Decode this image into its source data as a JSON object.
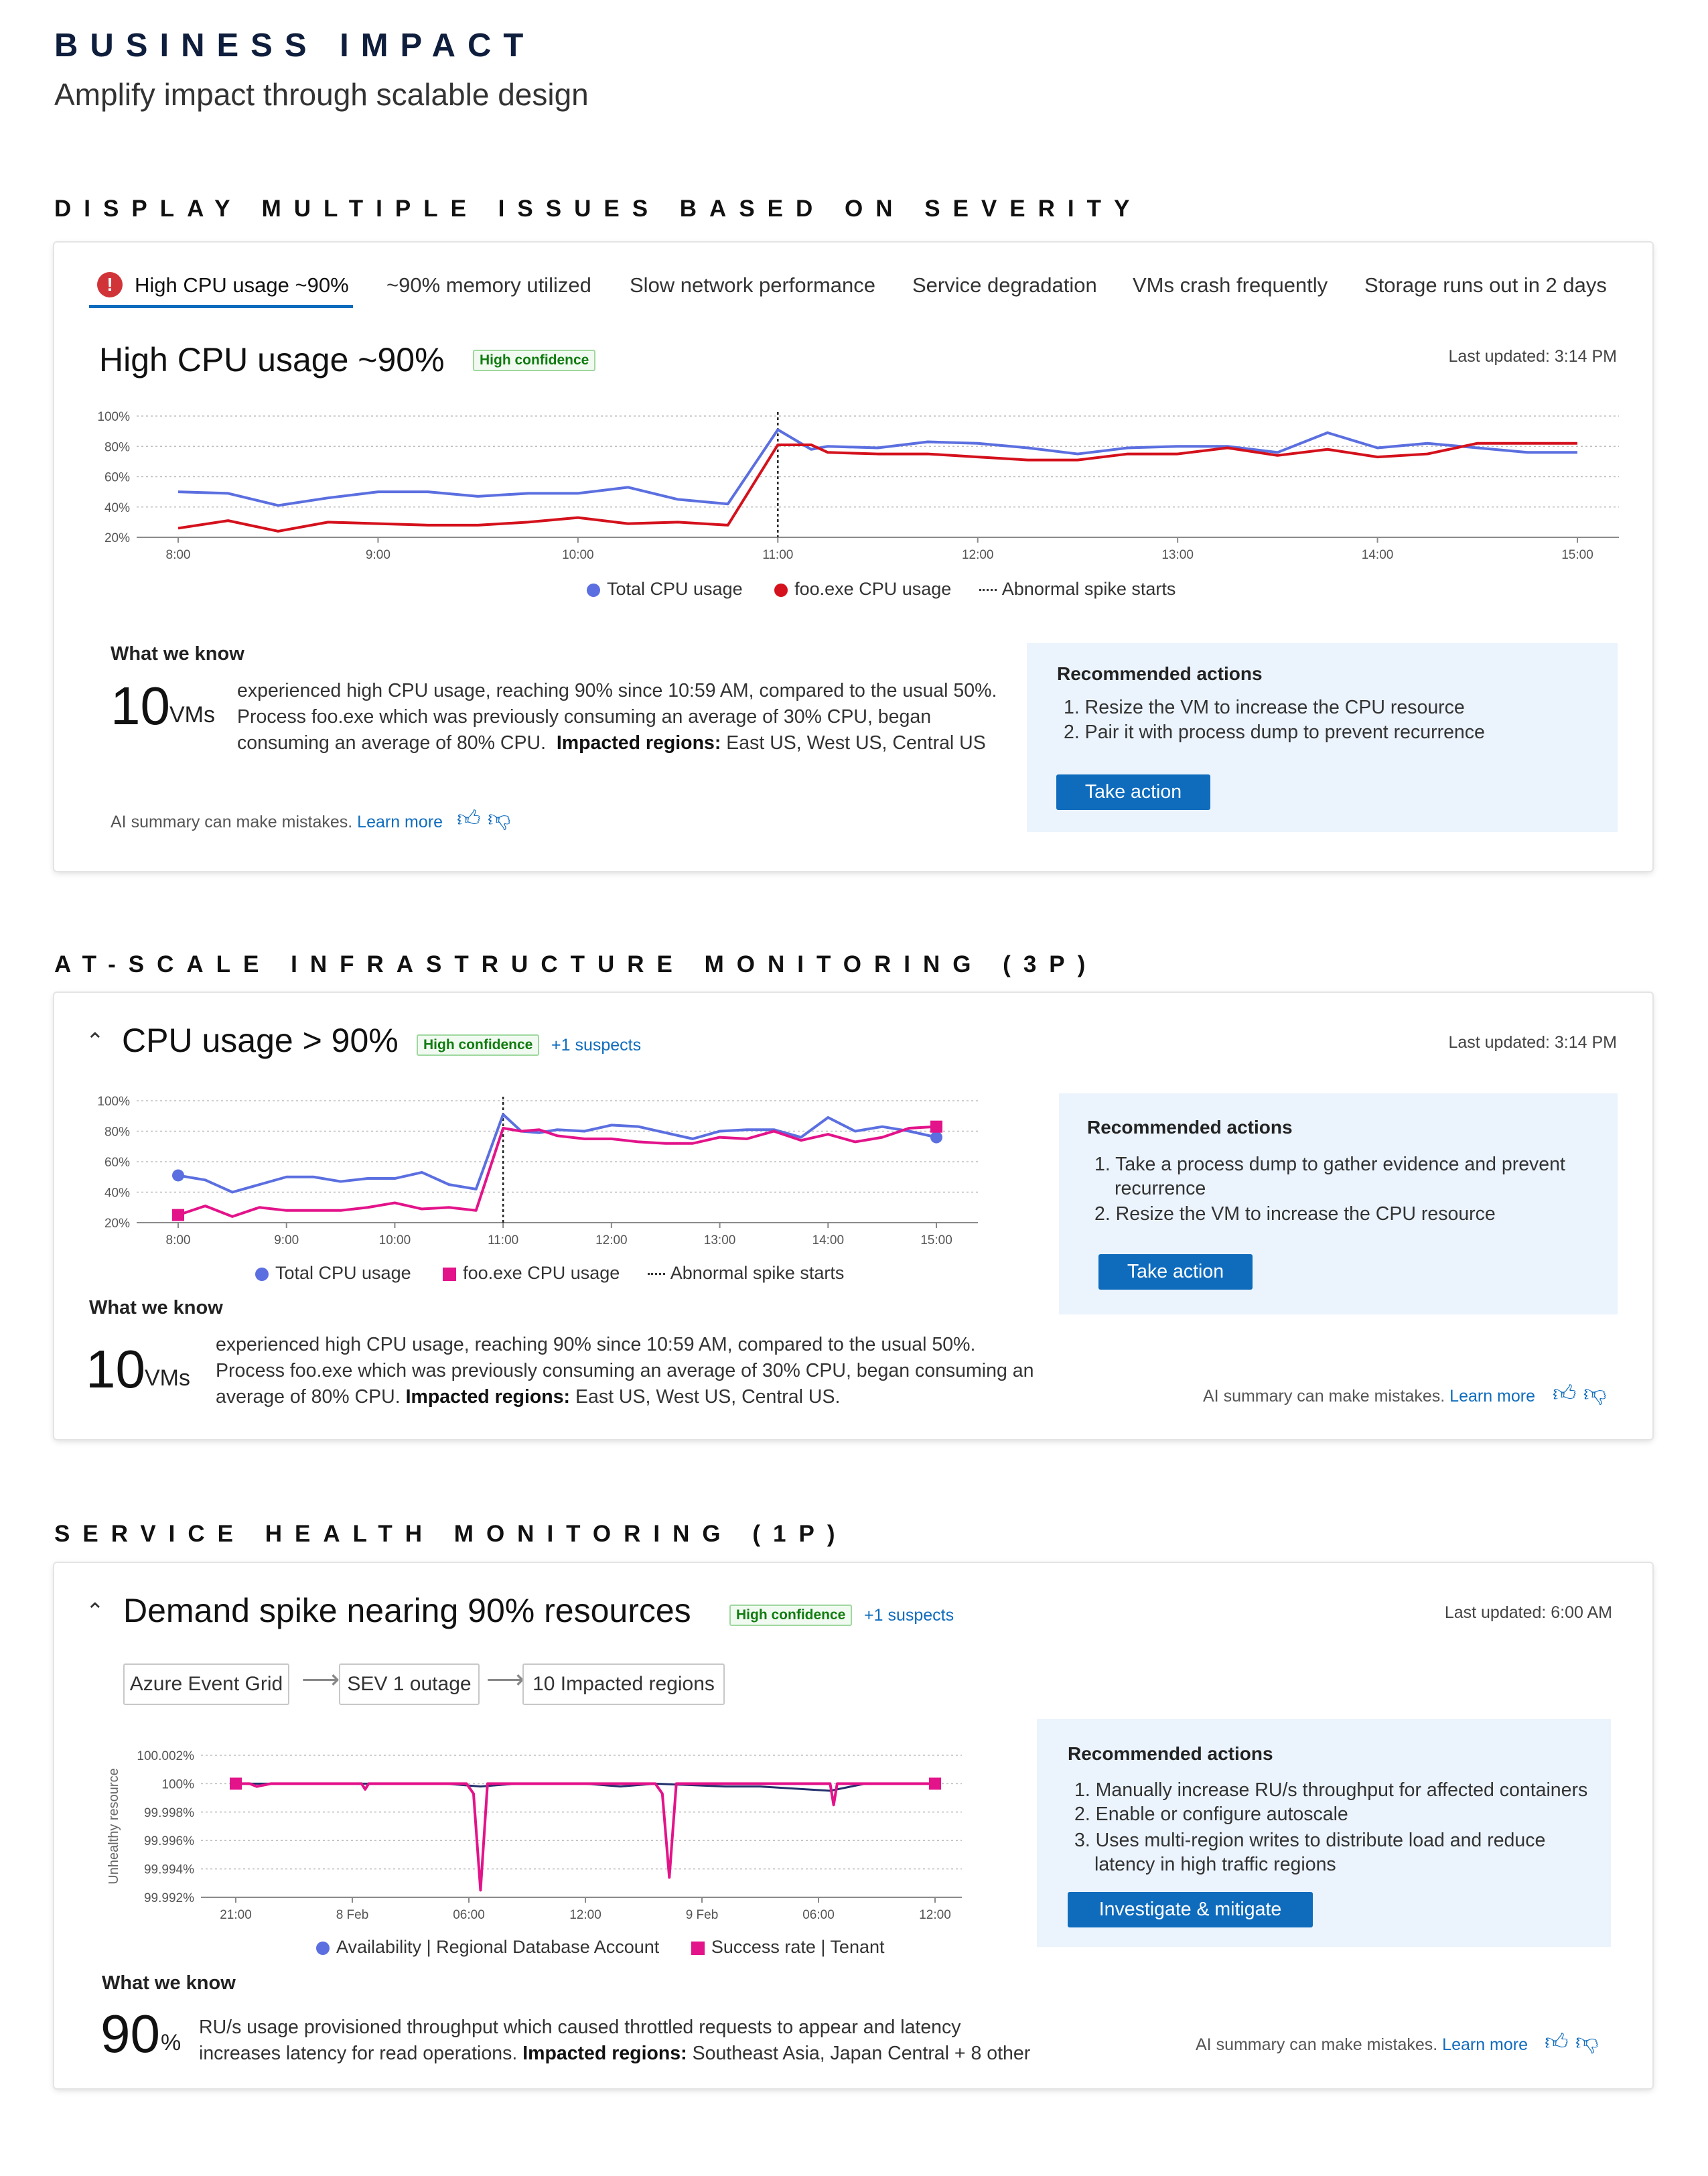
{
  "header": {
    "title": "BUSINESS IMPACT",
    "subtitle": "Amplify impact through scalable design"
  },
  "section1": {
    "heading": "DISPLAY MULTIPLE ISSUES BASED ON SEVERITY",
    "tabs": [
      "High CPU usage ~90%",
      "~90% memory utilized",
      "Slow network performance",
      "Service degradation",
      "VMs crash frequently",
      "Storage runs out in 2 days"
    ],
    "card_title": "High CPU usage ~90%",
    "badge": "High confidence",
    "last_updated": "Last updated: 3:14 PM",
    "legend": {
      "total": "Total CPU usage",
      "foo": "foo.exe CPU usage",
      "spike": "Abnormal spike starts"
    },
    "what_we_know": "What we know",
    "big_number": "10",
    "big_unit": "VMs",
    "text1": "experienced high CPU usage, reaching 90% since 10:59 AM, compared to the usual 50%.",
    "text2": "Process foo.exe which was previously consuming an average of 30% CPU, began",
    "text3a": "consuming an average of 80% CPU.",
    "text3b": "Impacted regions:",
    "text3c": "East US, West US, Central US",
    "ai_note": "AI summary can make mistakes.",
    "learn_more": "Learn more",
    "reco_title": "Recommended actions",
    "reco_items": [
      "1. Resize the VM to increase the CPU resource",
      "2. Pair it with process dump to prevent recurrence"
    ],
    "action_button": "Take action"
  },
  "section2": {
    "heading": "AT-SCALE INFRASTRUCTURE MONITORING (3P)",
    "card_title": "CPU usage > 90%",
    "badge": "High confidence",
    "suspects": "+1 suspects",
    "last_updated": "Last updated: 3:14 PM",
    "legend": {
      "total": "Total CPU usage",
      "foo": "foo.exe CPU usage",
      "spike": "Abnormal spike starts"
    },
    "what_we_know": "What we know",
    "big_number": "10",
    "big_unit": "VMs",
    "text1": "experienced high CPU usage, reaching 90% since 10:59 AM, compared to the usual 50%.",
    "text2": "Process foo.exe which was previously consuming an average of 30% CPU, began consuming an",
    "text3a": "average of 80% CPU.",
    "text3b": "Impacted regions:",
    "text3c": "East US, West US, Central US.",
    "ai_note": "AI summary can make mistakes.",
    "learn_more": "Learn more",
    "reco_title": "Recommended actions",
    "reco_items": [
      "1. Take a process dump to gather evidence and prevent",
      "recurrence",
      "2. Resize the VM to increase the CPU resource"
    ],
    "action_button": "Take action"
  },
  "section3": {
    "heading": "SERVICE HEALTH MONITORING (1P)",
    "card_title": "Demand spike nearing 90% resources",
    "badge": "High confidence",
    "suspects": "+1 suspects",
    "last_updated": "Last updated: 6:00 AM",
    "flow": [
      "Azure Event Grid",
      "SEV 1 outage",
      "10 Impacted regions"
    ],
    "y_axis_label": "Unhealthy resource",
    "legend": {
      "availability": "Availability | Regional Database Account",
      "success": "Success rate | Tenant"
    },
    "what_we_know": "What we know",
    "big_number": "90",
    "big_unit": "%",
    "text1": "RU/s usage  provisioned throughput which caused throttled requests to appear and latency",
    "text2a": "increases latency for read operations.",
    "text2b": "Impacted regions:",
    "text2c": "Southeast Asia, Japan Central + 8 other",
    "ai_note": "AI summary can make mistakes.",
    "learn_more": "Learn more",
    "reco_title": "Recommended actions",
    "reco_items": [
      "1. Manually increase RU/s throughput for affected containers",
      "2. Enable or configure autoscale",
      "3. Uses multi-region writes to distribute load and reduce",
      "latency in high traffic regions"
    ],
    "action_button": "Investigate & mitigate"
  },
  "colors": {
    "total_cpu": "#5b6fe0",
    "foo_cpu_red": "#d4111c",
    "foo_cpu_magenta": "#e3138a",
    "accent": "#0f6cbd",
    "success_green": "#107c10"
  },
  "chart_data": [
    {
      "type": "line",
      "x": [
        "8:00",
        "8:15",
        "8:30",
        "8:45",
        "9:00",
        "9:15",
        "9:30",
        "9:45",
        "10:00",
        "10:15",
        "10:30",
        "10:45",
        "11:00",
        "11:10",
        "11:15",
        "11:30",
        "11:45",
        "12:00",
        "12:15",
        "12:30",
        "12:45",
        "13:00",
        "13:15",
        "13:30",
        "13:45",
        "14:00",
        "14:15",
        "14:30",
        "14:45",
        "15:00"
      ],
      "x_ticks": [
        "8:00",
        "9:00",
        "10:00",
        "11:00",
        "12:00",
        "13:00",
        "14:00",
        "15:00"
      ],
      "y_ticks": [
        "20%",
        "40%",
        "60%",
        "80%",
        "100%"
      ],
      "ylim": [
        20,
        100
      ],
      "series": [
        {
          "name": "Total CPU usage",
          "values": [
            50,
            49,
            41,
            46,
            50,
            50,
            47,
            49,
            49,
            53,
            45,
            42,
            91,
            78,
            80,
            79,
            83,
            82,
            79,
            75,
            79,
            80,
            80,
            76,
            89,
            79,
            82,
            79,
            76,
            76
          ]
        },
        {
          "name": "foo.exe CPU usage",
          "values": [
            26,
            31,
            24,
            30,
            29,
            28,
            28,
            30,
            33,
            29,
            30,
            28,
            81,
            81,
            76,
            75,
            75,
            73,
            71,
            71,
            75,
            75,
            79,
            74,
            78,
            73,
            75,
            82,
            82,
            82
          ]
        }
      ],
      "marker": {
        "label": "Abnormal spike starts",
        "x": "11:00"
      },
      "grid": true,
      "legend": "bottom"
    },
    {
      "type": "line",
      "x": [
        "8:00",
        "8:15",
        "8:30",
        "8:45",
        "9:00",
        "9:15",
        "9:30",
        "9:45",
        "10:00",
        "10:15",
        "10:30",
        "10:45",
        "11:00",
        "11:10",
        "11:20",
        "11:30",
        "11:45",
        "12:00",
        "12:15",
        "12:30",
        "12:45",
        "13:00",
        "13:15",
        "13:30",
        "13:45",
        "14:00",
        "14:15",
        "14:30",
        "14:45",
        "15:00"
      ],
      "x_ticks": [
        "8:00",
        "9:00",
        "10:00",
        "11:00",
        "12:00",
        "13:00",
        "14:00",
        "15:00"
      ],
      "y_ticks": [
        "20%",
        "40%",
        "60%",
        "80%",
        "100%"
      ],
      "ylim": [
        20,
        100
      ],
      "series": [
        {
          "name": "Total CPU usage",
          "values": [
            51,
            48,
            40,
            45,
            50,
            50,
            47,
            49,
            49,
            53,
            45,
            42,
            91,
            80,
            79,
            81,
            80,
            84,
            83,
            79,
            75,
            80,
            81,
            81,
            76,
            89,
            80,
            83,
            80,
            76
          ]
        },
        {
          "name": "foo.exe CPU usage",
          "values": [
            25,
            31,
            24,
            30,
            28,
            28,
            28,
            30,
            33,
            29,
            30,
            28,
            82,
            80,
            81,
            77,
            75,
            75,
            73,
            72,
            72,
            76,
            75,
            80,
            74,
            78,
            73,
            76,
            82,
            83
          ]
        }
      ],
      "marker": {
        "label": "Abnormal spike starts",
        "x": "11:00"
      },
      "grid": true,
      "legend": "bottom"
    },
    {
      "type": "line",
      "x_ticks": [
        "21:00",
        "8 Feb",
        "06:00",
        "12:00",
        "9 Feb",
        "06:00",
        "12:00"
      ],
      "y_ticks": [
        "99.992%",
        "99.994%",
        "99.996%",
        "99.998%",
        "100%",
        "100.002%"
      ],
      "ylim": [
        99.992,
        100.002
      ],
      "ylabel": "Unhealthy resource",
      "series": [
        {
          "name": "Availability | Regional Database Account",
          "x": [
            0,
            0.1,
            0.2,
            0.3,
            0.35,
            0.4,
            0.5,
            0.55,
            0.6,
            0.7,
            0.75,
            0.85,
            0.9,
            0.95,
            1
          ],
          "values": [
            100,
            100,
            100,
            100,
            99.9998,
            100,
            100,
            99.9998,
            100,
            99.9998,
            99.9998,
            99.9995,
            100,
            100,
            100
          ]
        },
        {
          "name": "Success rate | Tenant",
          "x": [
            0,
            0.02,
            0.03,
            0.05,
            0.18,
            0.185,
            0.19,
            0.33,
            0.34,
            0.35,
            0.36,
            0.6,
            0.61,
            0.62,
            0.63,
            0.85,
            0.855,
            0.86,
            1
          ],
          "values": [
            100,
            100,
            99.9998,
            100,
            100,
            99.9996,
            100,
            100,
            99.9993,
            99.9925,
            100,
            100,
            99.9993,
            99.9934,
            100,
            100,
            99.9985,
            100,
            100
          ]
        }
      ],
      "grid": true,
      "legend": "bottom"
    }
  ]
}
